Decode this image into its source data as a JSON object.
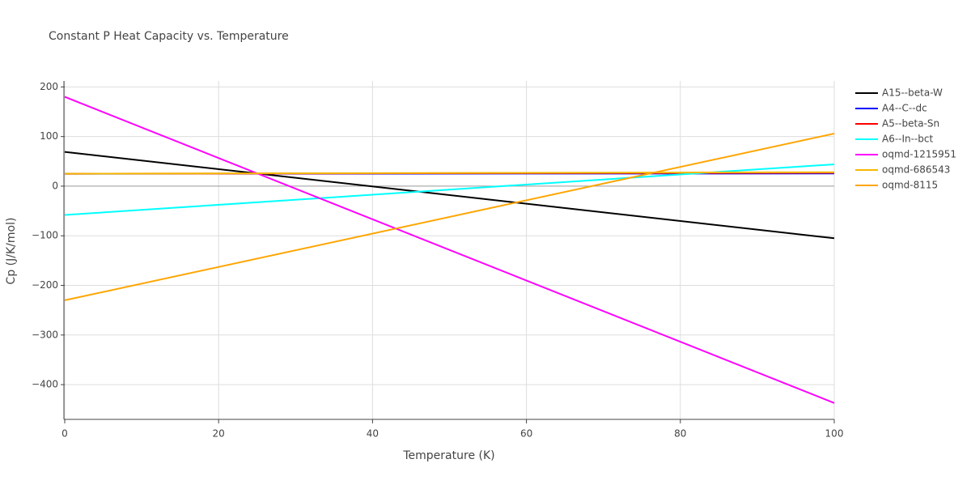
{
  "chart_data": {
    "type": "line",
    "title": "Constant P Heat Capacity vs. Temperature",
    "x_label": "Temperature (K)",
    "y_label": "Cp (J/K/mol)",
    "x": [
      0,
      100
    ],
    "xlim": [
      0,
      100
    ],
    "xticks": [
      0,
      20,
      40,
      60,
      80,
      100
    ],
    "ylim": [
      -470,
      212
    ],
    "yticks": [
      {
        "value": -400,
        "label": "−400"
      },
      {
        "value": -300,
        "label": "−300"
      },
      {
        "value": -200,
        "label": "−200"
      },
      {
        "value": -100,
        "label": "−100"
      },
      0,
      100,
      200
    ],
    "grid": true,
    "legend": "right",
    "series": [
      {
        "name": "A15--beta-W",
        "color": "#000000",
        "values": [
          69,
          -105
        ]
      },
      {
        "name": "A4--C--dc",
        "color": "#0000ff",
        "values": [
          25,
          25.5
        ]
      },
      {
        "name": "A5--beta-Sn",
        "color": "#ff0000",
        "values": [
          25,
          27
        ]
      },
      {
        "name": "A6--In--bct",
        "color": "#00ffff",
        "values": [
          -58,
          44
        ]
      },
      {
        "name": "oqmd-1215951",
        "color": "#ff00ff",
        "values": [
          180,
          -437
        ]
      },
      {
        "name": "oqmd-686543",
        "color": "#f5b800",
        "values": [
          25,
          28
        ]
      },
      {
        "name": "oqmd-8115",
        "color": "#ffa500",
        "values": [
          -230,
          106
        ]
      }
    ]
  }
}
